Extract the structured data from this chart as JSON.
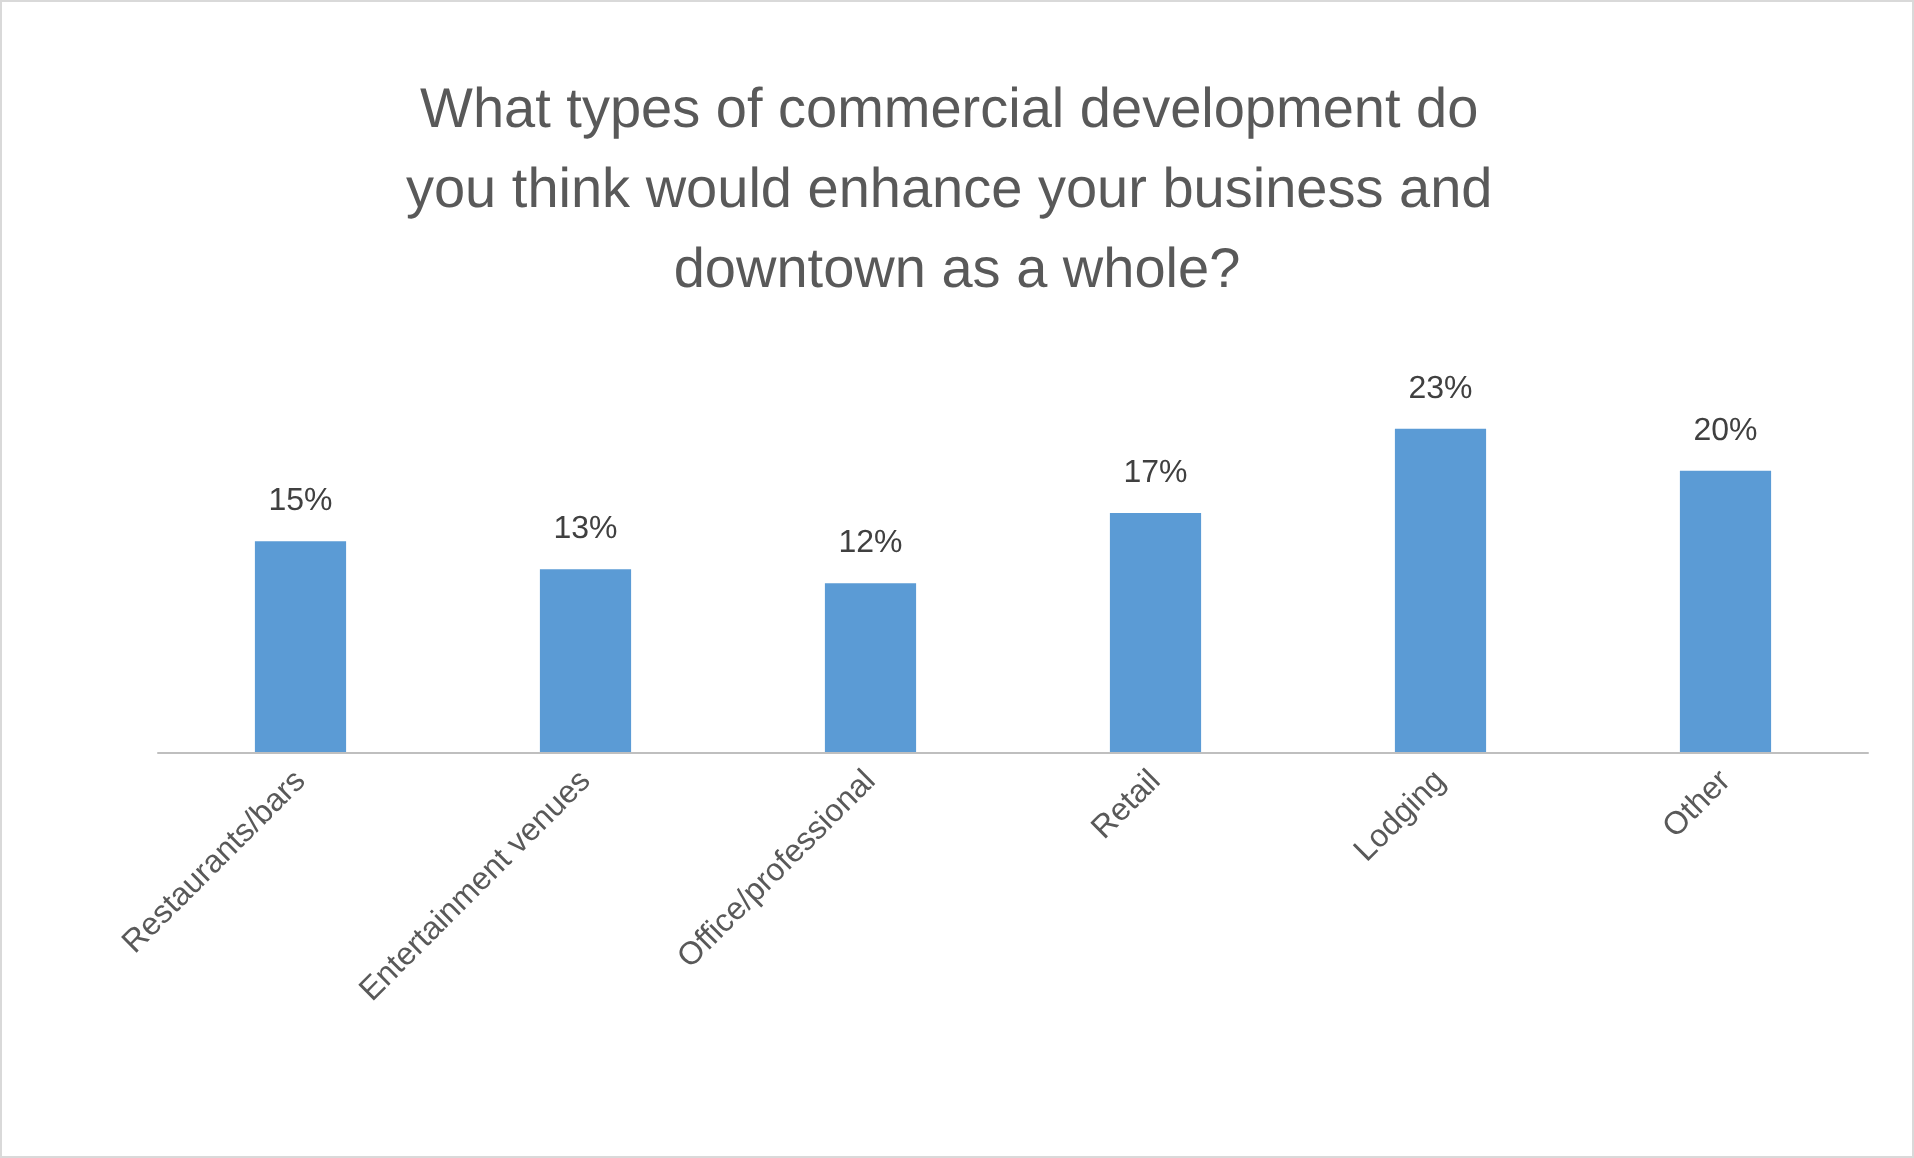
{
  "chart_data": {
    "type": "bar",
    "title": "What types of commercial development do you think would enhance your business and downtown as a whole?",
    "categories": [
      "Restaurants/bars",
      "Entertainment venues",
      "Office/professional",
      "Retail",
      "Lodging",
      "Other"
    ],
    "values": [
      15,
      13,
      12,
      17,
      23,
      20
    ],
    "value_labels": [
      "15%",
      "13%",
      "12%",
      "17%",
      "23%",
      "20%"
    ],
    "color": "#5b9bd5",
    "grid": false
  }
}
